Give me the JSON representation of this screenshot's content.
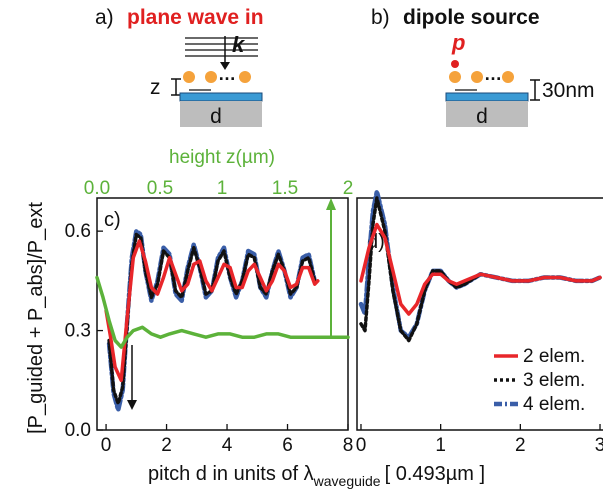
{
  "colors": {
    "red": "#e8262a",
    "black": "#111111",
    "blue": "#3a5ea8",
    "green": "#5cb23a",
    "orange": "#f5a23b",
    "substrate": "#bdbdbd",
    "film": "#3a9ad4"
  },
  "schematics": {
    "a": {
      "prefix": "a)",
      "title": "plane wave in",
      "k_label": "k",
      "z_label": "z",
      "d_label": "d"
    },
    "b": {
      "prefix": "b)",
      "title": "dipole source",
      "p_label": "p",
      "thickness_label": "30nm",
      "d_label": "d"
    }
  },
  "legend": [
    "2 elem.",
    "3 elem.",
    "4 elem."
  ],
  "xlabel_main": "pitch d in units of λ",
  "xlabel_sub": "waveguide",
  "xlabel_unit": "[ 0.493µm ]",
  "chart_data": [
    {
      "panel": "c)",
      "type": "line",
      "xlim": [
        -0.3,
        8
      ],
      "ylim": [
        0,
        0.7
      ],
      "xticks": [
        "0",
        "2",
        "4",
        "6",
        "8"
      ],
      "yticks": [
        "0.0",
        "0.3",
        "0.6"
      ],
      "ylabel": "[P_guided + P_abs]/P_ext",
      "top_axis": {
        "label": "height z(µm)",
        "ticks": [
          "0.0",
          "0.5",
          "1",
          "1.5",
          "2"
        ],
        "range": [
          0,
          2
        ]
      },
      "series": [
        {
          "name": "2 elem.",
          "x": [
            0,
            0.15,
            0.3,
            0.5,
            0.7,
            0.9,
            1.1,
            1.3,
            1.5,
            1.7,
            1.9,
            2.1,
            2.3,
            2.5,
            2.7,
            2.9,
            3.1,
            3.3,
            3.5,
            3.7,
            3.9,
            4.1,
            4.3,
            4.5,
            4.7,
            4.9,
            5.1,
            5.3,
            5.5,
            5.7,
            5.9,
            6.1,
            6.3,
            6.5,
            6.7,
            6.9,
            7.0
          ],
          "y": [
            0.36,
            0.28,
            0.19,
            0.15,
            0.34,
            0.52,
            0.57,
            0.51,
            0.43,
            0.41,
            0.46,
            0.52,
            0.47,
            0.42,
            0.44,
            0.5,
            0.51,
            0.45,
            0.42,
            0.46,
            0.5,
            0.49,
            0.43,
            0.43,
            0.48,
            0.5,
            0.46,
            0.42,
            0.45,
            0.5,
            0.48,
            0.43,
            0.44,
            0.49,
            0.49,
            0.44,
            0.45
          ]
        },
        {
          "name": "3 elem.",
          "x": [
            0.1,
            0.25,
            0.4,
            0.55,
            0.7,
            0.85,
            1.0,
            1.15,
            1.3,
            1.5,
            1.7,
            1.9,
            2.1,
            2.3,
            2.5,
            2.7,
            2.9,
            3.1,
            3.3,
            3.5,
            3.7,
            3.9,
            4.1,
            4.3,
            4.5,
            4.7,
            4.9,
            5.1,
            5.3,
            5.5,
            5.7,
            5.9,
            6.1,
            6.3,
            6.5,
            6.7,
            6.9
          ],
          "y": [
            0.27,
            0.12,
            0.08,
            0.13,
            0.32,
            0.5,
            0.59,
            0.58,
            0.48,
            0.4,
            0.44,
            0.54,
            0.52,
            0.42,
            0.4,
            0.48,
            0.55,
            0.49,
            0.41,
            0.42,
            0.51,
            0.54,
            0.46,
            0.41,
            0.45,
            0.53,
            0.52,
            0.43,
            0.41,
            0.48,
            0.53,
            0.48,
            0.41,
            0.43,
            0.51,
            0.52,
            0.45
          ]
        },
        {
          "name": "4 elem.",
          "x": [
            0.1,
            0.25,
            0.4,
            0.55,
            0.7,
            0.85,
            1.0,
            1.15,
            1.3,
            1.5,
            1.7,
            1.9,
            2.1,
            2.3,
            2.5,
            2.7,
            2.9,
            3.1,
            3.3,
            3.5,
            3.7,
            3.9,
            4.1,
            4.3,
            4.5,
            4.7,
            4.9,
            5.1,
            5.3,
            5.5,
            5.7,
            5.9,
            6.1,
            6.3,
            6.5,
            6.7,
            6.9
          ],
          "y": [
            0.26,
            0.11,
            0.06,
            0.12,
            0.33,
            0.52,
            0.6,
            0.59,
            0.48,
            0.39,
            0.45,
            0.55,
            0.53,
            0.41,
            0.39,
            0.49,
            0.56,
            0.49,
            0.4,
            0.42,
            0.52,
            0.55,
            0.46,
            0.4,
            0.45,
            0.54,
            0.53,
            0.43,
            0.4,
            0.48,
            0.54,
            0.48,
            0.4,
            0.43,
            0.52,
            0.53,
            0.45
          ]
        },
        {
          "name": "height z",
          "x": [
            -0.3,
            -0.1,
            0.1,
            0.3,
            0.5,
            0.7,
            0.9,
            1.2,
            1.5,
            1.8,
            2.1,
            2.5,
            2.9,
            3.3,
            3.7,
            4.1,
            4.5,
            4.9,
            5.3,
            5.7,
            6.1,
            6.5,
            6.9,
            7.3,
            7.7,
            8.0
          ],
          "y": [
            0.46,
            0.4,
            0.33,
            0.27,
            0.25,
            0.28,
            0.3,
            0.31,
            0.29,
            0.28,
            0.29,
            0.3,
            0.29,
            0.28,
            0.29,
            0.29,
            0.28,
            0.28,
            0.29,
            0.29,
            0.28,
            0.28,
            0.28,
            0.28,
            0.28,
            0.28
          ]
        }
      ]
    },
    {
      "panel": "d)",
      "type": "line",
      "xlim": [
        -0.05,
        3.05
      ],
      "ylim": [
        0,
        0.7
      ],
      "xticks": [
        "0",
        "1",
        "2",
        "3"
      ],
      "series": [
        {
          "name": "2 elem.",
          "x": [
            0,
            0.1,
            0.2,
            0.3,
            0.4,
            0.5,
            0.6,
            0.7,
            0.8,
            0.9,
            1.0,
            1.1,
            1.2,
            1.3,
            1.5,
            1.7,
            1.9,
            2.1,
            2.3,
            2.5,
            2.7,
            2.9,
            3.0
          ],
          "y": [
            0.45,
            0.55,
            0.62,
            0.58,
            0.48,
            0.38,
            0.35,
            0.38,
            0.44,
            0.47,
            0.47,
            0.45,
            0.44,
            0.45,
            0.47,
            0.46,
            0.45,
            0.45,
            0.46,
            0.46,
            0.45,
            0.45,
            0.46
          ]
        },
        {
          "name": "3 elem.",
          "x": [
            0,
            0.05,
            0.1,
            0.15,
            0.2,
            0.3,
            0.4,
            0.5,
            0.6,
            0.7,
            0.8,
            0.9,
            1.0,
            1.1,
            1.2,
            1.3,
            1.5,
            1.7,
            1.9,
            2.1,
            2.3,
            2.5,
            2.7,
            2.9,
            3.0
          ],
          "y": [
            0.32,
            0.3,
            0.45,
            0.62,
            0.7,
            0.6,
            0.42,
            0.3,
            0.27,
            0.32,
            0.42,
            0.48,
            0.48,
            0.45,
            0.43,
            0.44,
            0.47,
            0.46,
            0.45,
            0.45,
            0.46,
            0.46,
            0.45,
            0.45,
            0.46
          ]
        },
        {
          "name": "4 elem.",
          "x": [
            0,
            0.05,
            0.1,
            0.15,
            0.2,
            0.3,
            0.4,
            0.5,
            0.6,
            0.7,
            0.8,
            0.9,
            1.0,
            1.1,
            1.2,
            1.3,
            1.5,
            1.7,
            1.9,
            2.1,
            2.3,
            2.5,
            2.7,
            2.9,
            3.0
          ],
          "y": [
            0.38,
            0.35,
            0.52,
            0.66,
            0.72,
            0.62,
            0.43,
            0.3,
            0.28,
            0.32,
            0.42,
            0.48,
            0.48,
            0.45,
            0.43,
            0.44,
            0.47,
            0.46,
            0.45,
            0.45,
            0.46,
            0.46,
            0.45,
            0.45,
            0.46
          ]
        }
      ]
    }
  ]
}
